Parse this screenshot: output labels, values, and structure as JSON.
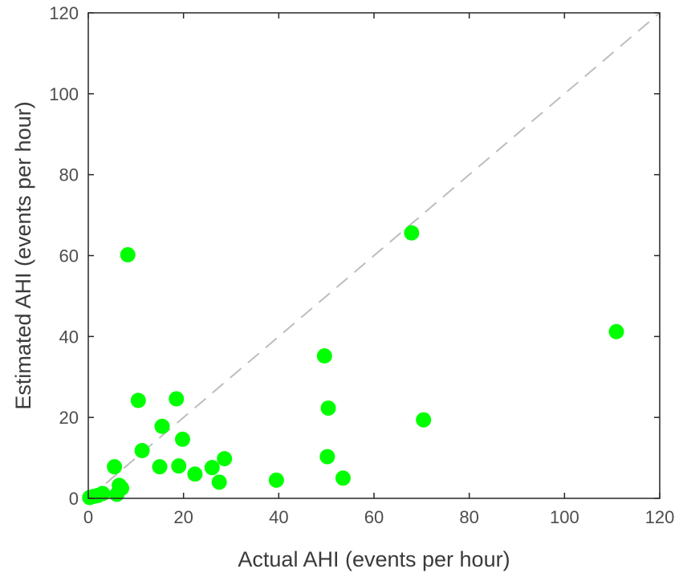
{
  "chart_data": {
    "type": "scatter",
    "xlabel": "Actual AHI (events per hour)",
    "ylabel": "Estimated AHI (events per hour)",
    "xlim": [
      0,
      120
    ],
    "ylim": [
      0,
      120
    ],
    "xticks": [
      0,
      20,
      40,
      60,
      80,
      100,
      120
    ],
    "yticks": [
      0,
      20,
      40,
      60,
      80,
      100,
      120
    ],
    "grid": false,
    "reference_line": {
      "x": [
        0,
        120
      ],
      "y": [
        0,
        120
      ],
      "style": "dashed",
      "color": "#bdbdbd"
    },
    "marker_color": "#00ff00",
    "points": [
      {
        "x": 0.3,
        "y": 0.2
      },
      {
        "x": 1.2,
        "y": 0.5
      },
      {
        "x": 2.0,
        "y": 0.7
      },
      {
        "x": 3.0,
        "y": 1.2
      },
      {
        "x": 5.5,
        "y": 7.8
      },
      {
        "x": 6.0,
        "y": 1.0
      },
      {
        "x": 6.5,
        "y": 3.2
      },
      {
        "x": 7.0,
        "y": 2.5
      },
      {
        "x": 8.3,
        "y": 60.2
      },
      {
        "x": 10.5,
        "y": 24.2
      },
      {
        "x": 11.3,
        "y": 11.8
      },
      {
        "x": 15.0,
        "y": 7.8
      },
      {
        "x": 15.5,
        "y": 17.8
      },
      {
        "x": 18.5,
        "y": 24.6
      },
      {
        "x": 19.0,
        "y": 8.0
      },
      {
        "x": 19.8,
        "y": 14.6
      },
      {
        "x": 22.4,
        "y": 6.0
      },
      {
        "x": 26.0,
        "y": 7.6
      },
      {
        "x": 27.5,
        "y": 4.0
      },
      {
        "x": 28.6,
        "y": 9.8
      },
      {
        "x": 39.5,
        "y": 4.5
      },
      {
        "x": 49.6,
        "y": 35.2
      },
      {
        "x": 50.2,
        "y": 10.3
      },
      {
        "x": 50.4,
        "y": 22.3
      },
      {
        "x": 53.5,
        "y": 5.0
      },
      {
        "x": 67.9,
        "y": 65.6
      },
      {
        "x": 70.4,
        "y": 19.4
      },
      {
        "x": 110.9,
        "y": 41.2
      }
    ]
  }
}
